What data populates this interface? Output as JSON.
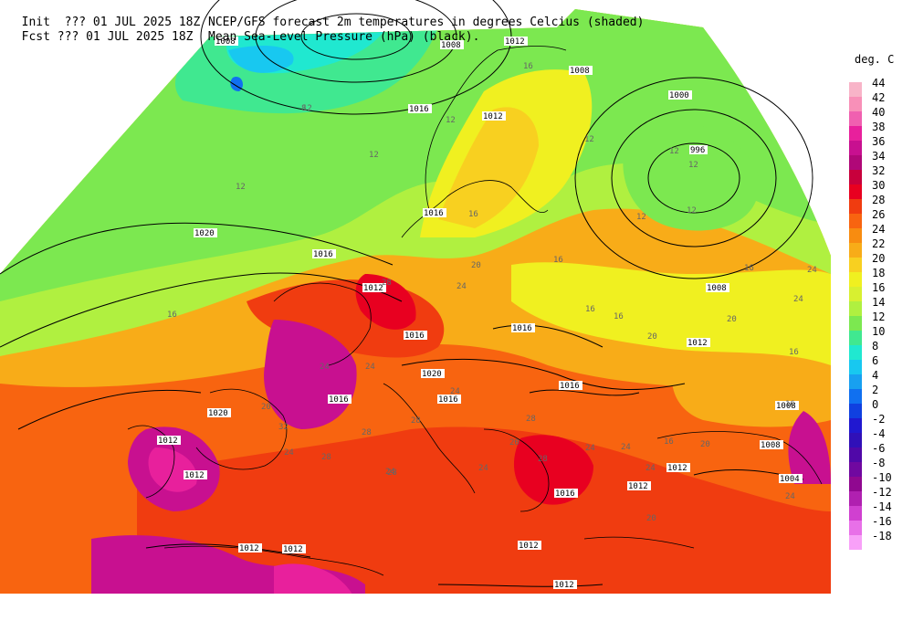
{
  "header": {
    "line1_left": "Init  ??? 01 JUL 2025 18Z",
    "line1_right": "NCEP/GFS forecast 2m temperatures in degrees Celcius (shaded)",
    "line2_left": "Fcst ??? 01 JUL 2025 18Z",
    "line2_right": "Mean Sea-Level Pressure (hPa) (black)."
  },
  "legend": {
    "title": "deg. C",
    "levels": [
      {
        "label": "44",
        "color": "#f8b4c8"
      },
      {
        "label": "42",
        "color": "#f890b8"
      },
      {
        "label": "40",
        "color": "#f060b0"
      },
      {
        "label": "38",
        "color": "#e8209c"
      },
      {
        "label": "36",
        "color": "#c81090"
      },
      {
        "label": "34",
        "color": "#b00878"
      },
      {
        "label": "32",
        "color": "#c8003c"
      },
      {
        "label": "30",
        "color": "#e80020"
      },
      {
        "label": "28",
        "color": "#f03c10"
      },
      {
        "label": "26",
        "color": "#f86410"
      },
      {
        "label": "24",
        "color": "#f88c10"
      },
      {
        "label": "22",
        "color": "#f8ac18"
      },
      {
        "label": "20",
        "color": "#f8d020"
      },
      {
        "label": "18",
        "color": "#f0f020"
      },
      {
        "label": "16",
        "color": "#d8f030"
      },
      {
        "label": "14",
        "color": "#b0f040"
      },
      {
        "label": "12",
        "color": "#7ce850"
      },
      {
        "label": "10",
        "color": "#40e890"
      },
      {
        "label": "8",
        "color": "#20e8d0"
      },
      {
        "label": "6",
        "color": "#18c8f0"
      },
      {
        "label": "4",
        "color": "#18a0f0"
      },
      {
        "label": "2",
        "color": "#1070f0"
      },
      {
        "label": "0",
        "color": "#1040e0"
      },
      {
        "label": "-2",
        "color": "#2018d0"
      },
      {
        "label": "-4",
        "color": "#3010b8"
      },
      {
        "label": "-6",
        "color": "#5008a8"
      },
      {
        "label": "-8",
        "color": "#7008a0"
      },
      {
        "label": "-10",
        "color": "#900890"
      },
      {
        "label": "-12",
        "color": "#b020b0"
      },
      {
        "label": "-14",
        "color": "#d040d0"
      },
      {
        "label": "-16",
        "color": "#e870e8"
      },
      {
        "label": "-18",
        "color": "#f8a0f8"
      }
    ]
  },
  "isobar_labels": [
    "1008",
    "1008",
    "1012",
    "1012",
    "1008",
    "1000",
    "996",
    "1016",
    "1016",
    "1016",
    "1020",
    "1016",
    "1008",
    "1020",
    "1016",
    "1016",
    "1020",
    "1016",
    "1016",
    "1012",
    "1012",
    "1012",
    "1016",
    "1012",
    "1012",
    "1008",
    "1004",
    "1008",
    "1012",
    "1012",
    "1012",
    "1012",
    "1012"
  ],
  "temp_labels": [
    "16",
    "12",
    "16",
    "12",
    "12",
    "12",
    "12",
    "12",
    "12",
    "8",
    "16",
    "12",
    "12",
    "16",
    "16",
    "16",
    "20",
    "24",
    "16",
    "20",
    "24",
    "24",
    "20",
    "16",
    "16",
    "20",
    "24",
    "24",
    "24",
    "28",
    "28",
    "28",
    "28",
    "24",
    "24",
    "20",
    "24",
    "28",
    "28",
    "32",
    "24",
    "24",
    "20",
    "24",
    "28",
    "24",
    "20",
    "16"
  ]
}
